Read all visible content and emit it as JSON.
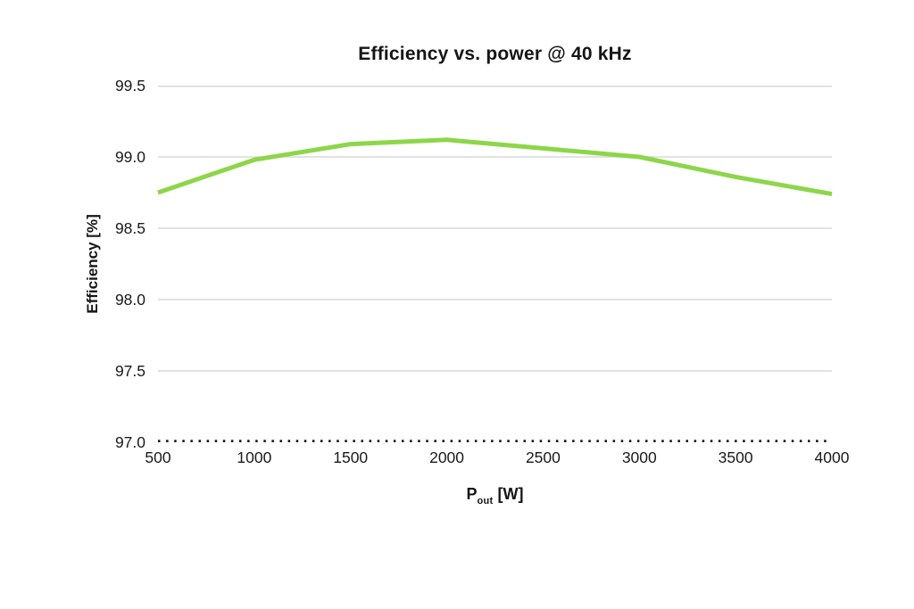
{
  "title": "Efficiency vs. power @ 40 kHz",
  "y_axis_title": "Efficiency [%]",
  "x_axis_title": {
    "base": "P",
    "subscript": "out",
    "unit": " [W]"
  },
  "colors": {
    "line_green": "#8dd64a",
    "gridline": "#d9d9d9",
    "baseline_dotted": "#1a1a1a",
    "text": "#1a1a1a",
    "background": "#ffffff"
  },
  "chart_data": {
    "type": "line",
    "title": "Efficiency vs. power @ 40 kHz",
    "xlabel": "P_out [W]",
    "ylabel": "Efficiency [%]",
    "x": [
      500,
      1000,
      1500,
      2000,
      2500,
      3000,
      3500,
      4000
    ],
    "series": [
      {
        "name": "Efficiency @ 40 kHz",
        "color": "#8dd64a",
        "values": [
          98.75,
          98.98,
          99.09,
          99.12,
          99.06,
          99.0,
          98.86,
          98.74
        ]
      }
    ],
    "xlim": [
      500,
      4000
    ],
    "ylim": [
      97.0,
      99.5
    ],
    "xticks": [
      500,
      1000,
      1500,
      2000,
      2500,
      3000,
      3500,
      4000
    ],
    "xtick_labels": [
      "500",
      "1000",
      "1500",
      "2000",
      "2500",
      "3000",
      "3500",
      "4000"
    ],
    "yticks": [
      97.0,
      97.5,
      98.0,
      98.5,
      99.0,
      99.5
    ],
    "ytick_labels": [
      "97.0",
      "97.5",
      "98.0",
      "98.5",
      "99.0",
      "99.5"
    ],
    "grid": "horizontal",
    "grid_visible": true,
    "legend": "none",
    "baseline_style": "dotted",
    "line_width": 5
  }
}
